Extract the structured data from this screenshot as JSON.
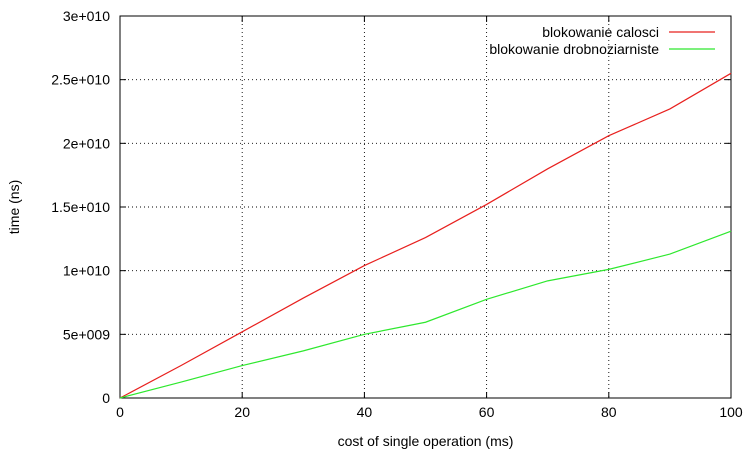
{
  "chart_data": {
    "type": "line",
    "title": "",
    "xlabel": "cost of single operation (ms)",
    "ylabel": "time (ns)",
    "xlim": [
      0,
      100
    ],
    "ylim": [
      0,
      30000000000
    ],
    "x_ticks": [
      0,
      20,
      40,
      60,
      80,
      100
    ],
    "x_tick_labels": [
      "0",
      "20",
      "40",
      "60",
      "80",
      "100"
    ],
    "y_ticks": [
      0,
      5000000000,
      10000000000,
      15000000000,
      20000000000,
      25000000000,
      30000000000
    ],
    "y_tick_labels": [
      "0",
      "5e+009",
      "1e+010",
      "1.5e+010",
      "2e+010",
      "2.5e+010",
      "3e+010"
    ],
    "grid": true,
    "legend_position": "top-right",
    "x": [
      0,
      10,
      20,
      30,
      40,
      50,
      60,
      70,
      80,
      90,
      100
    ],
    "series": [
      {
        "name": "blokowanie calosci",
        "color": "#e8201e",
        "values": [
          0,
          2550000000,
          5200000000,
          7850000000,
          10400000000,
          12600000000,
          15200000000,
          18000000000,
          20600000000,
          22700000000,
          25500000000
        ]
      },
      {
        "name": "blokowanie drobnoziarniste",
        "color": "#2ee82e",
        "values": [
          0,
          1250000000,
          2550000000,
          3700000000,
          5000000000,
          5950000000,
          7750000000,
          9200000000,
          10100000000,
          11300000000,
          13100000000
        ]
      }
    ]
  }
}
